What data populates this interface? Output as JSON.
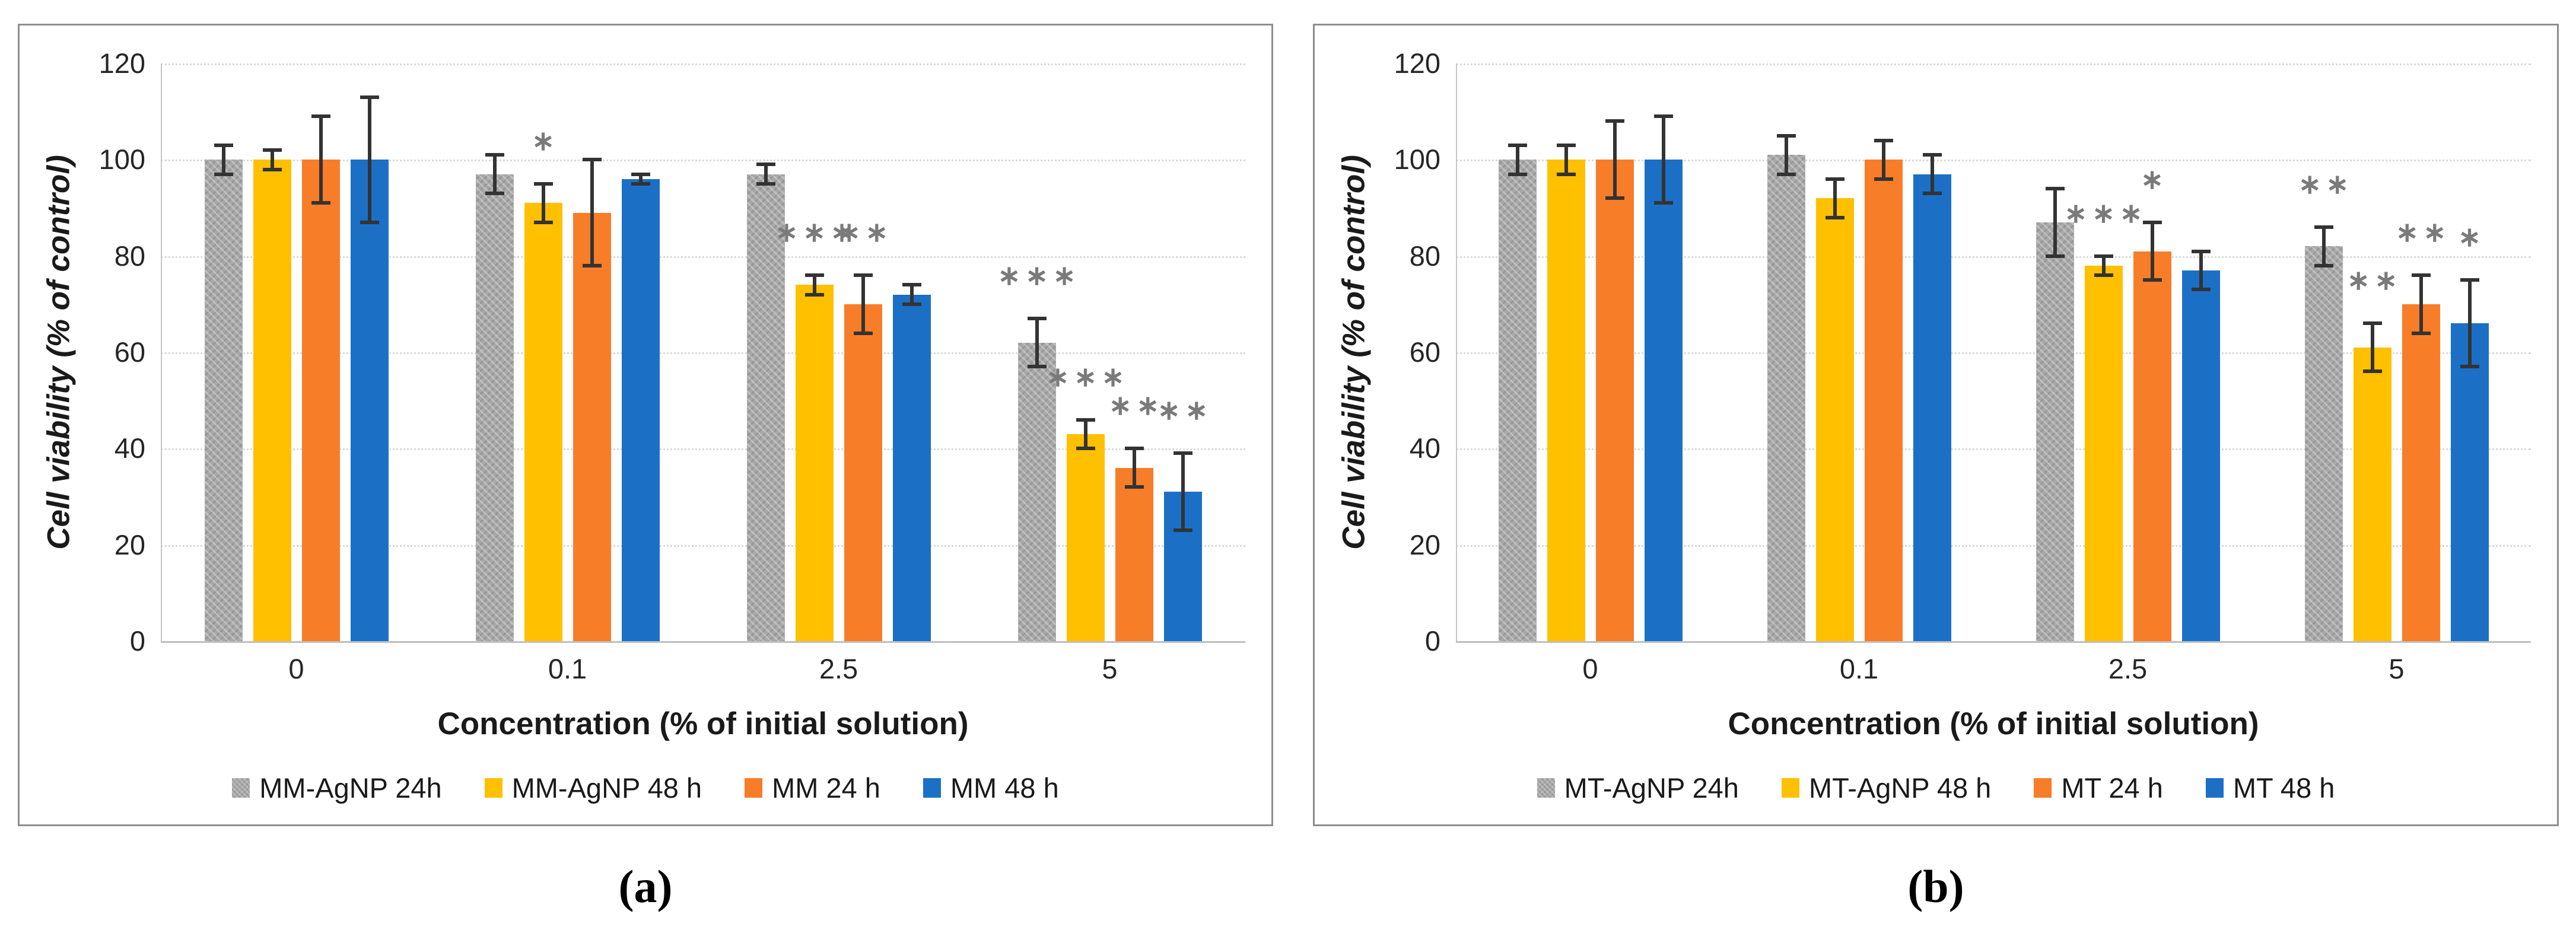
{
  "styles": {
    "grid_color": "#d9d9d9",
    "axis_line_color": "#c6c6c6",
    "baseline_color": "#bfbfbf",
    "error_bar_color": "#333333",
    "sig_color": "#7a7a7a",
    "panel_border_color": "#8f8f8f",
    "text_color": "#262626",
    "series_colors": {
      "gray": "#a8a8a8",
      "yellow": "#ffc000",
      "orange": "#f87d28",
      "blue": "#1b70c6"
    }
  },
  "chart_data": [
    {
      "type": "bar",
      "panel_label": "(a)",
      "xlabel": "Concentration (% of initial solution)",
      "ylabel": "Cell viability (% of control)",
      "ylim": [
        0,
        120
      ],
      "yticks": [
        0,
        20,
        40,
        60,
        80,
        100,
        120
      ],
      "grid": true,
      "legend_position": "bottom",
      "categories": [
        "0",
        "0.1",
        "2.5",
        "5"
      ],
      "series": [
        {
          "name": "MM-AgNP 24h",
          "color": "#a8a8a8",
          "pattern": true,
          "values": [
            100,
            97,
            97,
            62
          ],
          "errors": [
            3,
            4,
            2,
            5
          ],
          "sig": [
            "",
            "",
            "",
            "***"
          ]
        },
        {
          "name": "MM-AgNP 48 h",
          "color": "#ffc000",
          "pattern": false,
          "values": [
            100,
            91,
            74,
            43
          ],
          "errors": [
            2,
            4,
            2,
            3
          ],
          "sig": [
            "",
            "*",
            "***",
            "***"
          ]
        },
        {
          "name": "MM 24 h",
          "color": "#f87d28",
          "pattern": false,
          "values": [
            100,
            89,
            70,
            36
          ],
          "errors": [
            9,
            11,
            6,
            4
          ],
          "sig": [
            "",
            "",
            "**",
            "**"
          ]
        },
        {
          "name": "MM 48 h",
          "color": "#1b70c6",
          "pattern": false,
          "values": [
            100,
            96,
            72,
            31
          ],
          "errors": [
            13,
            1,
            2,
            8
          ],
          "sig": [
            "",
            "",
            "",
            "**"
          ]
        }
      ]
    },
    {
      "type": "bar",
      "panel_label": "(b)",
      "xlabel": "Concentration (% of initial solution)",
      "ylabel": "Cell viability (% of control)",
      "ylim": [
        0,
        120
      ],
      "yticks": [
        0,
        20,
        40,
        60,
        80,
        100,
        120
      ],
      "grid": true,
      "legend_position": "bottom",
      "categories": [
        "0",
        "0.1",
        "2.5",
        "5"
      ],
      "series": [
        {
          "name": "MT-AgNP 24h",
          "color": "#a8a8a8",
          "pattern": true,
          "values": [
            100,
            101,
            87,
            82
          ],
          "errors": [
            3,
            4,
            7,
            4
          ],
          "sig": [
            "",
            "",
            "",
            "**"
          ]
        },
        {
          "name": "MT-AgNP 48 h",
          "color": "#ffc000",
          "pattern": false,
          "values": [
            100,
            92,
            78,
            61
          ],
          "errors": [
            3,
            4,
            2,
            5
          ],
          "sig": [
            "",
            "",
            "***",
            "**"
          ]
        },
        {
          "name": "MT 24 h",
          "color": "#f87d28",
          "pattern": false,
          "values": [
            100,
            100,
            81,
            70
          ],
          "errors": [
            8,
            4,
            6,
            6
          ],
          "sig": [
            "",
            "",
            "*",
            "**"
          ]
        },
        {
          "name": "MT 48 h",
          "color": "#1b70c6",
          "pattern": false,
          "values": [
            100,
            97,
            77,
            66
          ],
          "errors": [
            9,
            4,
            4,
            9
          ],
          "sig": [
            "",
            "",
            "",
            "*"
          ]
        }
      ]
    }
  ]
}
